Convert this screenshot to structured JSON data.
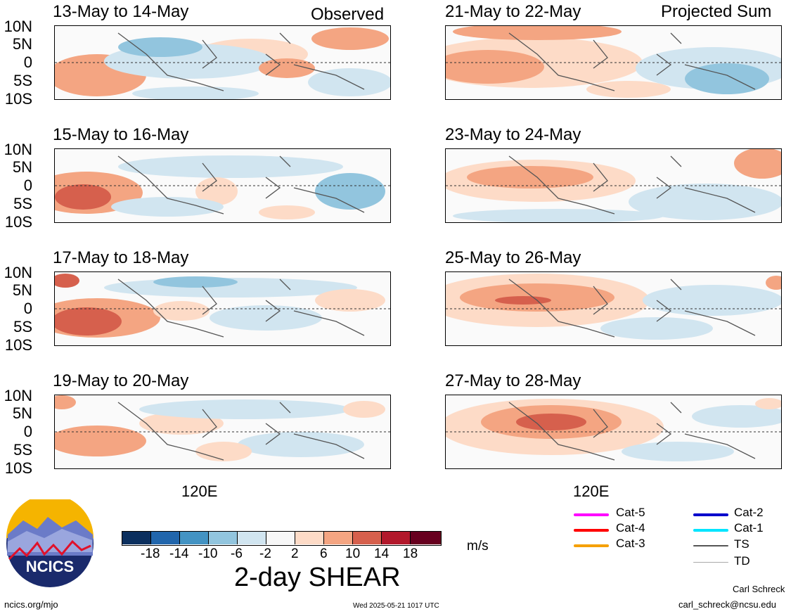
{
  "header": {
    "left_label": "Observed",
    "right_label": "Projected Sum"
  },
  "lat_labels": [
    "10N",
    "5N",
    "0",
    "5S",
    "10S"
  ],
  "lon_label": "120E",
  "panels": {
    "observed": [
      {
        "title": "13-May to 14-May"
      },
      {
        "title": "15-May to 16-May"
      },
      {
        "title": "17-May to 18-May"
      },
      {
        "title": "19-May to 20-May"
      }
    ],
    "projected": [
      {
        "title": "21-May to 22-May"
      },
      {
        "title": "23-May to 24-May"
      },
      {
        "title": "25-May to 26-May"
      },
      {
        "title": "27-May to 28-May"
      }
    ]
  },
  "colorbar": {
    "ticks": [
      "-18",
      "-14",
      "-10",
      "-6",
      "-2",
      "2",
      "6",
      "10",
      "14",
      "18"
    ],
    "colors": [
      "#0b2f5e",
      "#2166ac",
      "#4393c3",
      "#92c5de",
      "#d1e5f0",
      "#f7f7f7",
      "#fddbc7",
      "#f4a582",
      "#d6604d",
      "#b2182b",
      "#67001f"
    ],
    "units": "m/s",
    "title": "2-day SHEAR"
  },
  "storm_legend": [
    {
      "label": "Cat-5",
      "color": "#ff00ff"
    },
    {
      "label": "Cat-4",
      "color": "#ff0000"
    },
    {
      "label": "Cat-3",
      "color": "#f5a000"
    },
    {
      "label": "Cat-2",
      "color": "#0000cc"
    },
    {
      "label": "Cat-1",
      "color": "#00e5ff"
    },
    {
      "label": "TS",
      "color": "#555555"
    },
    {
      "label": "TD",
      "color": "#aaaaaa"
    }
  ],
  "logo": {
    "text": "NCICS"
  },
  "footer": {
    "left": "ncics.org/mjo",
    "center": "Wed 2025-05-21 1017 UTC",
    "author": "Carl Schreck",
    "email": "carl_schreck@ncsu.edu"
  }
}
